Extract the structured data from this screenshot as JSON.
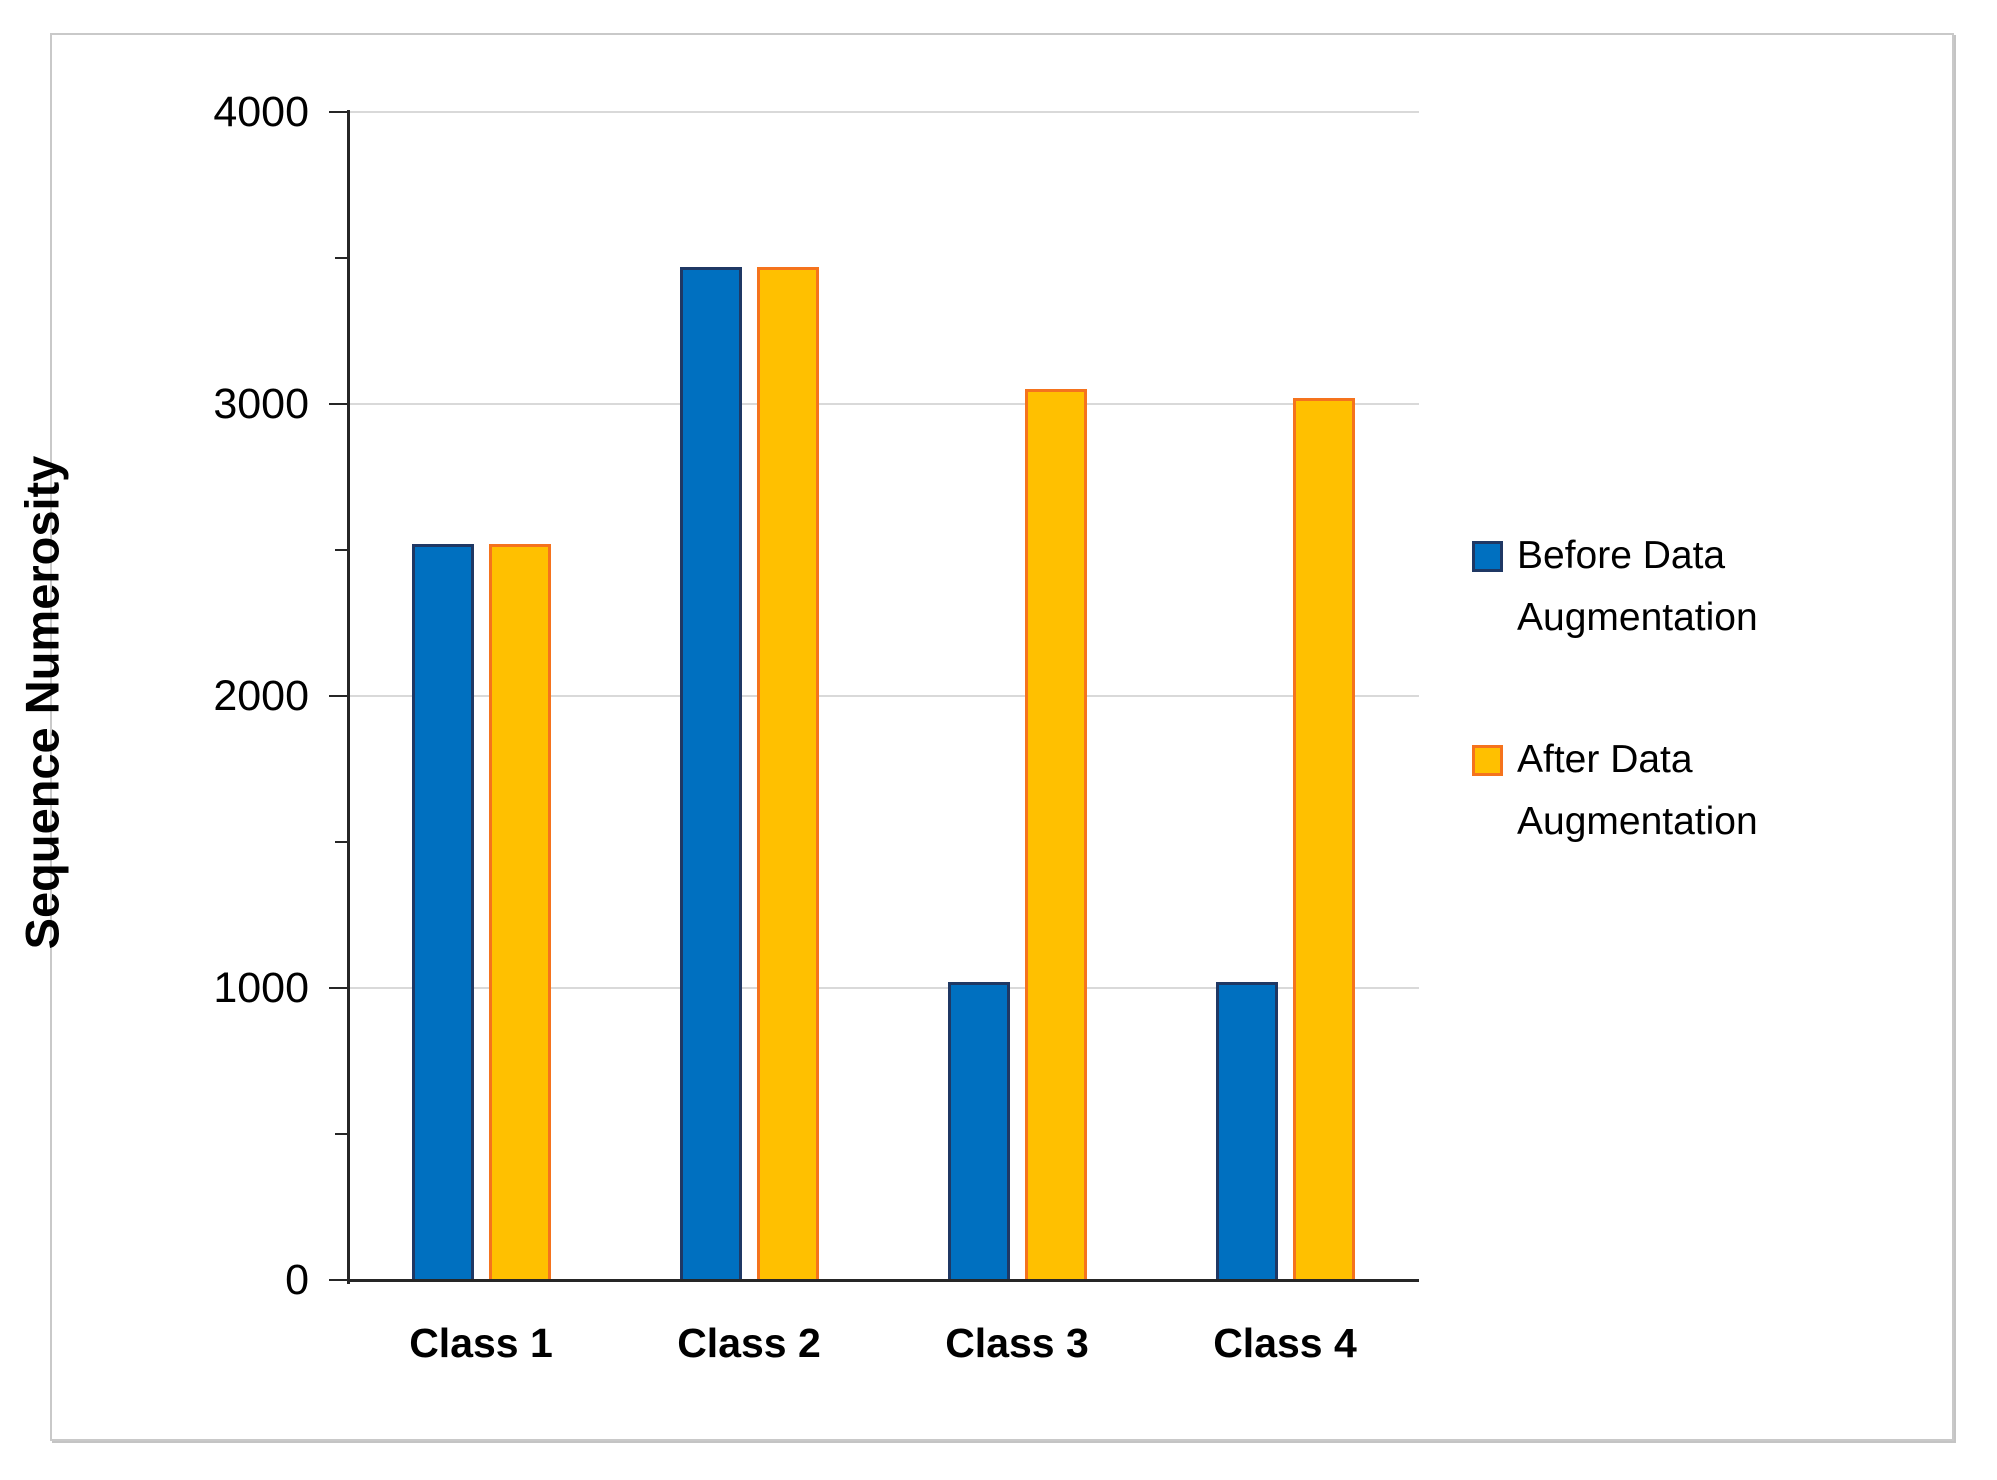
{
  "figure": {
    "background": "#FFFFFF",
    "frame_border_color": "#C9C9C9"
  },
  "chart_data": {
    "type": "bar",
    "title": "",
    "xlabel": "",
    "ylabel": "Sequence Numerosity",
    "categories": [
      "Class 1",
      "Class 2",
      "Class 3",
      "Class 4"
    ],
    "series": [
      {
        "name": "Before Data Augmentation",
        "fill": "#0070C0",
        "border": "#1F3864",
        "values": [
          2520,
          3470,
          1020,
          1020
        ]
      },
      {
        "name": "After Data Augmentation",
        "fill": "#FFC000",
        "border": "#F5731D",
        "values": [
          2520,
          3470,
          3050,
          3020
        ]
      }
    ],
    "ylim": [
      0,
      4000
    ],
    "y_major_ticks": [
      0,
      1000,
      2000,
      3000,
      4000
    ],
    "y_minor_tick_step": 500,
    "grid": "horizontal-major",
    "gridline_color": "#D9D9D9",
    "axis_color": "#262626",
    "legend_position": "right"
  }
}
